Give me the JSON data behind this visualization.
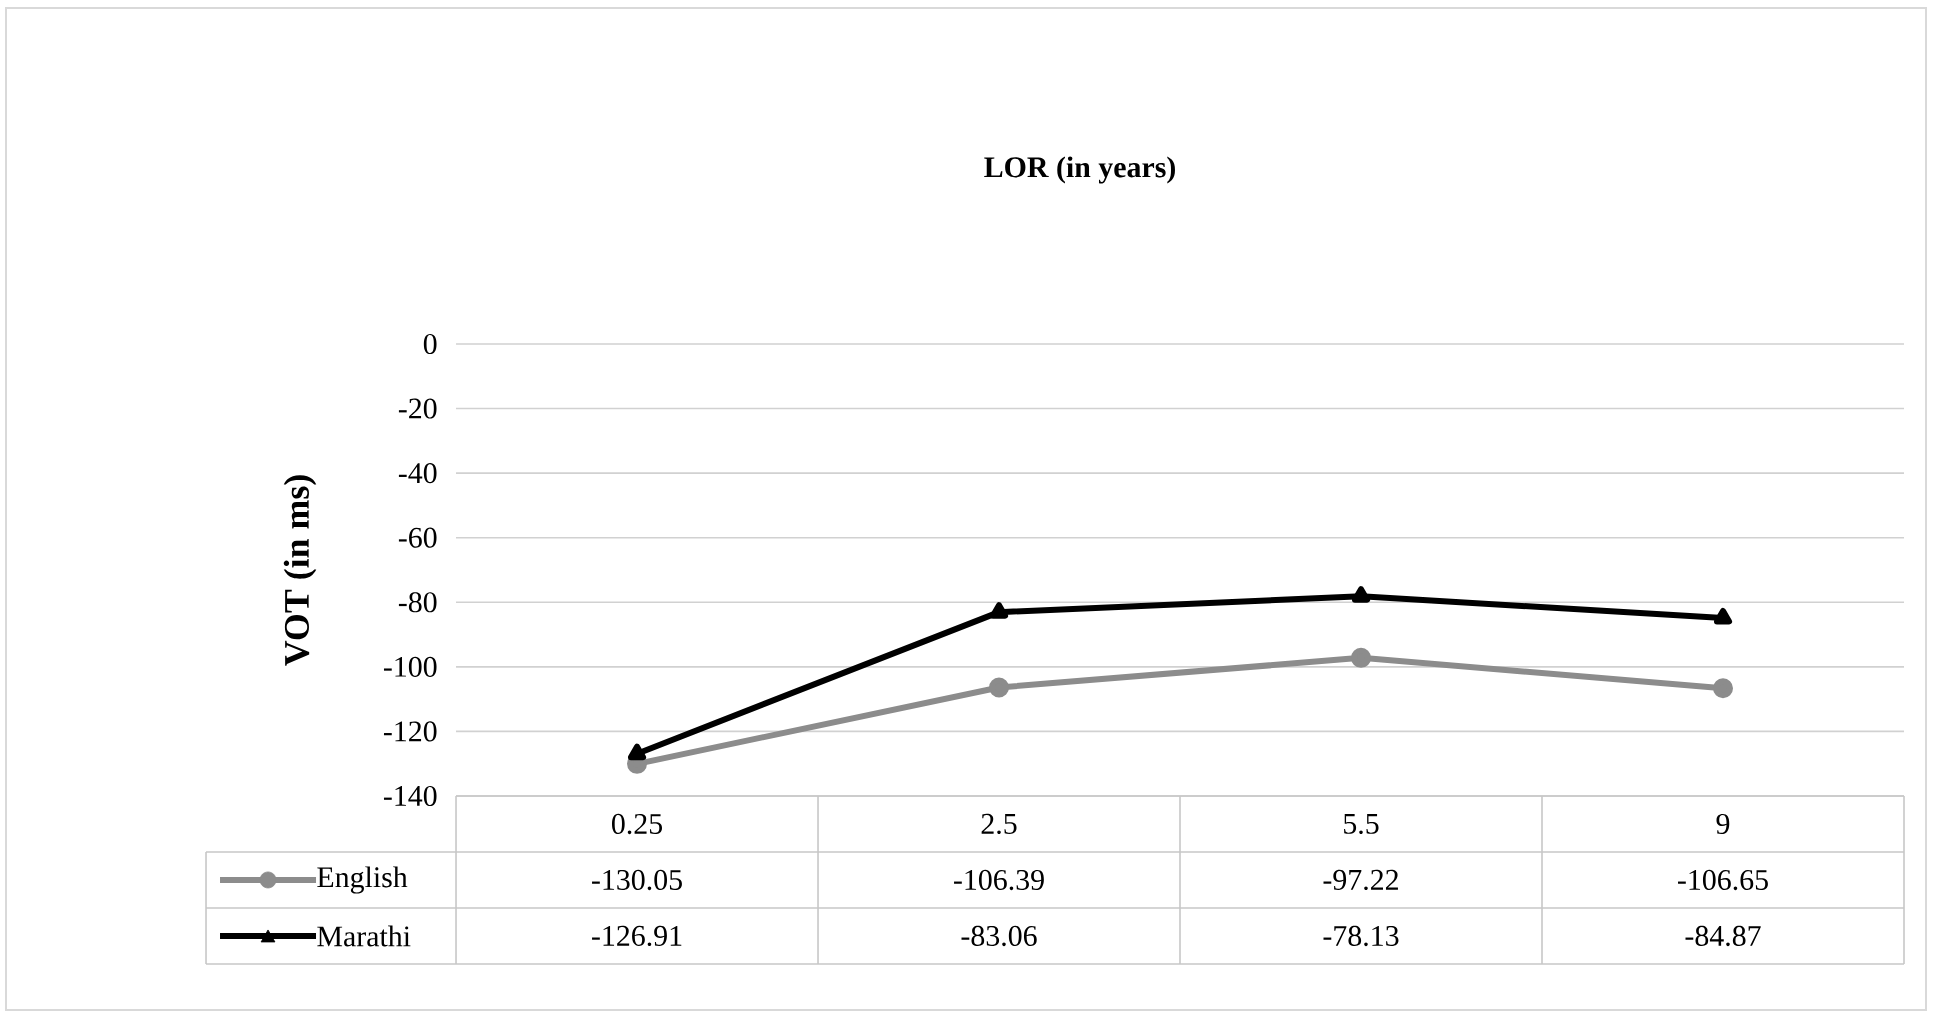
{
  "chart_data": {
    "type": "line",
    "title": "LOR (in years)",
    "ylabel": "VOT (in ms)",
    "categories": [
      "0.25",
      "2.5",
      "5.5",
      "9"
    ],
    "series": [
      {
        "name": "English",
        "color": "#8c8c8c",
        "marker": "circle",
        "values": [
          -130.05,
          -106.39,
          -97.22,
          -106.65
        ]
      },
      {
        "name": "Marathi",
        "color": "#000000",
        "marker": "triangle",
        "values": [
          -126.91,
          -83.06,
          -78.13,
          -84.87
        ]
      }
    ],
    "ylim": [
      -140,
      0
    ],
    "yticks": [
      -140,
      -120,
      -100,
      -80,
      -60,
      -40,
      -20,
      0
    ],
    "grid": "y",
    "legend": "bottom left",
    "data_labels": true
  }
}
